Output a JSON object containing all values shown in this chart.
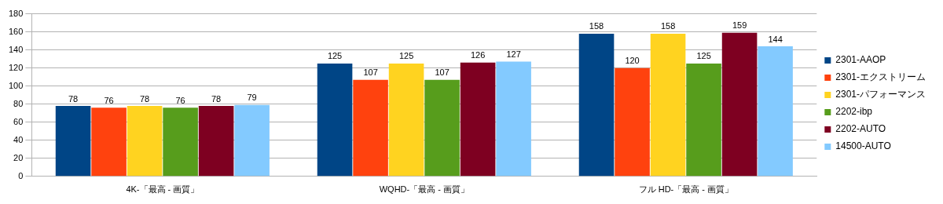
{
  "chart_data": {
    "type": "bar",
    "categories": [
      "4K-「最高 - 画質」",
      "WQHD-「最高 - 画質」",
      "フル HD-「最高 - 画質」"
    ],
    "series": [
      {
        "name": "2301-AAOP",
        "color": "#004586",
        "values": [
          78,
          125,
          158
        ]
      },
      {
        "name": "2301-エクストリーム",
        "color": "#ff420e",
        "values": [
          76,
          107,
          120
        ]
      },
      {
        "name": "2301-パフォーマンス",
        "color": "#ffd320",
        "values": [
          78,
          125,
          158
        ]
      },
      {
        "name": "2202-ibp",
        "color": "#579d1c",
        "values": [
          76,
          107,
          125
        ]
      },
      {
        "name": "2202-AUTO",
        "color": "#7e0021",
        "values": [
          78,
          126,
          159
        ]
      },
      {
        "name": "14500-AUTO",
        "color": "#83caff",
        "values": [
          79,
          127,
          144
        ]
      }
    ],
    "ylim": [
      0,
      180
    ],
    "yticks": [
      0,
      20,
      40,
      60,
      80,
      100,
      120,
      140,
      160,
      180
    ],
    "grid": "y",
    "legend": "right",
    "data_labels": true
  }
}
